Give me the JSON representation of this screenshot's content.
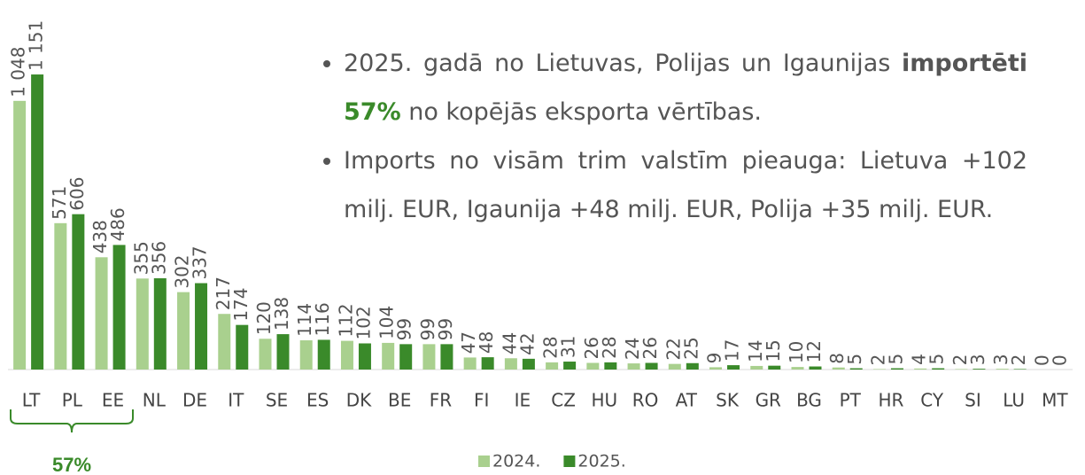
{
  "chart_data": {
    "type": "bar",
    "categories": [
      "LT",
      "PL",
      "EE",
      "NL",
      "DE",
      "IT",
      "SE",
      "ES",
      "DK",
      "BE",
      "FR",
      "FI",
      "IE",
      "CZ",
      "HU",
      "RO",
      "AT",
      "SK",
      "GR",
      "BG",
      "PT",
      "HR",
      "CY",
      "SI",
      "LU",
      "MT"
    ],
    "series": [
      {
        "name": "2024.",
        "color": "#a9d08e",
        "values": [
          1048,
          571,
          438,
          355,
          302,
          217,
          120,
          114,
          112,
          104,
          99,
          47,
          44,
          28,
          26,
          24,
          22,
          9,
          14,
          10,
          8,
          2,
          4,
          2,
          3,
          0
        ],
        "value_labels": [
          "1 048",
          "571",
          "438",
          "355",
          "302",
          "217",
          "120",
          "114",
          "112",
          "104",
          "99",
          "47",
          "44",
          "28",
          "26",
          "24",
          "22",
          "9",
          "14",
          "10",
          "8",
          "2",
          "4",
          "2",
          "3",
          "0"
        ]
      },
      {
        "name": "2025.",
        "color": "#3a8a2a",
        "values": [
          1151,
          606,
          486,
          356,
          337,
          174,
          138,
          116,
          102,
          99,
          99,
          48,
          42,
          31,
          28,
          26,
          25,
          17,
          15,
          12,
          5,
          5,
          5,
          3,
          2,
          0
        ],
        "value_labels": [
          "1 151",
          "606",
          "486",
          "356",
          "337",
          "174",
          "138",
          "116",
          "102",
          "99",
          "99",
          "48",
          "42",
          "31",
          "28",
          "26",
          "25",
          "17",
          "15",
          "12",
          "5",
          "5",
          "5",
          "3",
          "2",
          "0"
        ]
      }
    ],
    "ylim": [
      0,
      1400
    ],
    "grid": false,
    "bracket_label": "57%",
    "annotations": [
      [
        {
          "text": "2025. gadā no Lietuvas, Polijas un Igaunijas "
        },
        {
          "text": "importēti",
          "bold": true
        },
        {
          "text": " "
        },
        {
          "text": "57%",
          "bold": true,
          "color": "#3a8a2a"
        },
        {
          "text": " no kopējās eksporta vērtības."
        }
      ],
      [
        {
          "text": "Imports no visām trim valstīm pieauga: Lietuva +102 milj. EUR, Igaunija +48 milj. EUR, Polija +35 milj. EUR."
        }
      ]
    ]
  }
}
